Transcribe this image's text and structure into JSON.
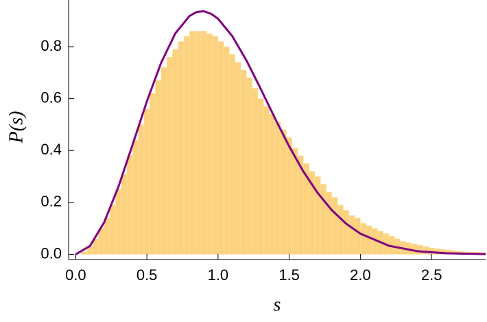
{
  "chart_data": {
    "type": "histogram",
    "xlabel": "s",
    "ylabel": "P(s)",
    "bins": [
      0,
      0.04,
      0.08,
      0.12,
      0.16,
      0.2,
      0.24,
      0.28,
      0.32,
      0.36,
      0.4,
      0.44,
      0.48,
      0.52,
      0.56,
      0.6,
      0.64,
      0.68,
      0.72,
      0.76,
      0.8,
      0.84,
      0.88,
      0.92,
      0.96,
      1.0,
      1.04,
      1.08,
      1.12,
      1.16,
      1.2,
      1.24,
      1.28,
      1.32,
      1.36,
      1.4,
      1.44,
      1.48,
      1.52,
      1.56,
      1.6,
      1.64,
      1.68,
      1.72,
      1.76,
      1.8,
      1.84,
      1.88,
      1.92,
      1.96,
      2.0,
      2.04,
      2.08,
      2.12,
      2.16,
      2.2,
      2.24,
      2.28,
      2.32,
      2.36,
      2.4,
      2.44,
      2.48,
      2.52,
      2.56,
      2.6,
      2.64,
      2.68,
      2.72,
      2.76,
      2.8,
      2.84,
      2.88
    ],
    "values": [
      0.0,
      0.01,
      0.03,
      0.06,
      0.1,
      0.14,
      0.19,
      0.25,
      0.31,
      0.38,
      0.44,
      0.5,
      0.56,
      0.62,
      0.67,
      0.72,
      0.76,
      0.79,
      0.82,
      0.84,
      0.86,
      0.86,
      0.86,
      0.85,
      0.84,
      0.82,
      0.8,
      0.77,
      0.74,
      0.71,
      0.68,
      0.64,
      0.6,
      0.57,
      0.54,
      0.51,
      0.48,
      0.45,
      0.41,
      0.38,
      0.35,
      0.32,
      0.3,
      0.27,
      0.24,
      0.22,
      0.19,
      0.17,
      0.15,
      0.14,
      0.12,
      0.11,
      0.1,
      0.09,
      0.08,
      0.07,
      0.06,
      0.05,
      0.045,
      0.04,
      0.035,
      0.03,
      0.025,
      0.022,
      0.019,
      0.017,
      0.014,
      0.012,
      0.01,
      0.009,
      0.008,
      0.007
    ],
    "color": "#fcd27e",
    "series": [
      {
        "type": "line",
        "color": "#800080",
        "x": [
          0,
          0.1,
          0.2,
          0.3,
          0.4,
          0.5,
          0.6,
          0.7,
          0.8,
          0.85,
          0.9,
          0.95,
          1.0,
          1.1,
          1.2,
          1.3,
          1.4,
          1.5,
          1.6,
          1.7,
          1.8,
          1.9,
          2.0,
          2.2,
          2.4,
          2.6,
          2.88
        ],
        "values": [
          0,
          0.032,
          0.1233,
          0.2602,
          0.4232,
          0.5896,
          0.7381,
          0.8514,
          0.9186,
          0.9338,
          0.9366,
          0.9273,
          0.9078,
          0.8408,
          0.7466,
          0.6373,
          0.5243,
          0.4158,
          0.3188,
          0.2365,
          0.1698,
          0.1181,
          0.0796,
          0.0331,
          0.0122,
          0.004,
          0.0007
        ]
      }
    ],
    "xlim": [
      -0.05,
      2.88
    ],
    "ylim": [
      -0.02,
      0.98
    ],
    "xticks": [
      {
        "value": 0,
        "label": "0.0"
      },
      {
        "value": 0.5,
        "label": "0.5"
      },
      {
        "value": 1,
        "label": "1.0"
      },
      {
        "value": 1.5,
        "label": "1.5"
      },
      {
        "value": 2,
        "label": "2.0"
      },
      {
        "value": 2.5,
        "label": "2.5"
      }
    ],
    "yticks": [
      {
        "value": 0,
        "label": "0.0"
      },
      {
        "value": 0.2,
        "label": "0.2"
      },
      {
        "value": 0.4,
        "label": "0.4"
      },
      {
        "value": 0.6,
        "label": "0.6"
      },
      {
        "value": 0.8,
        "label": "0.8"
      }
    ]
  }
}
